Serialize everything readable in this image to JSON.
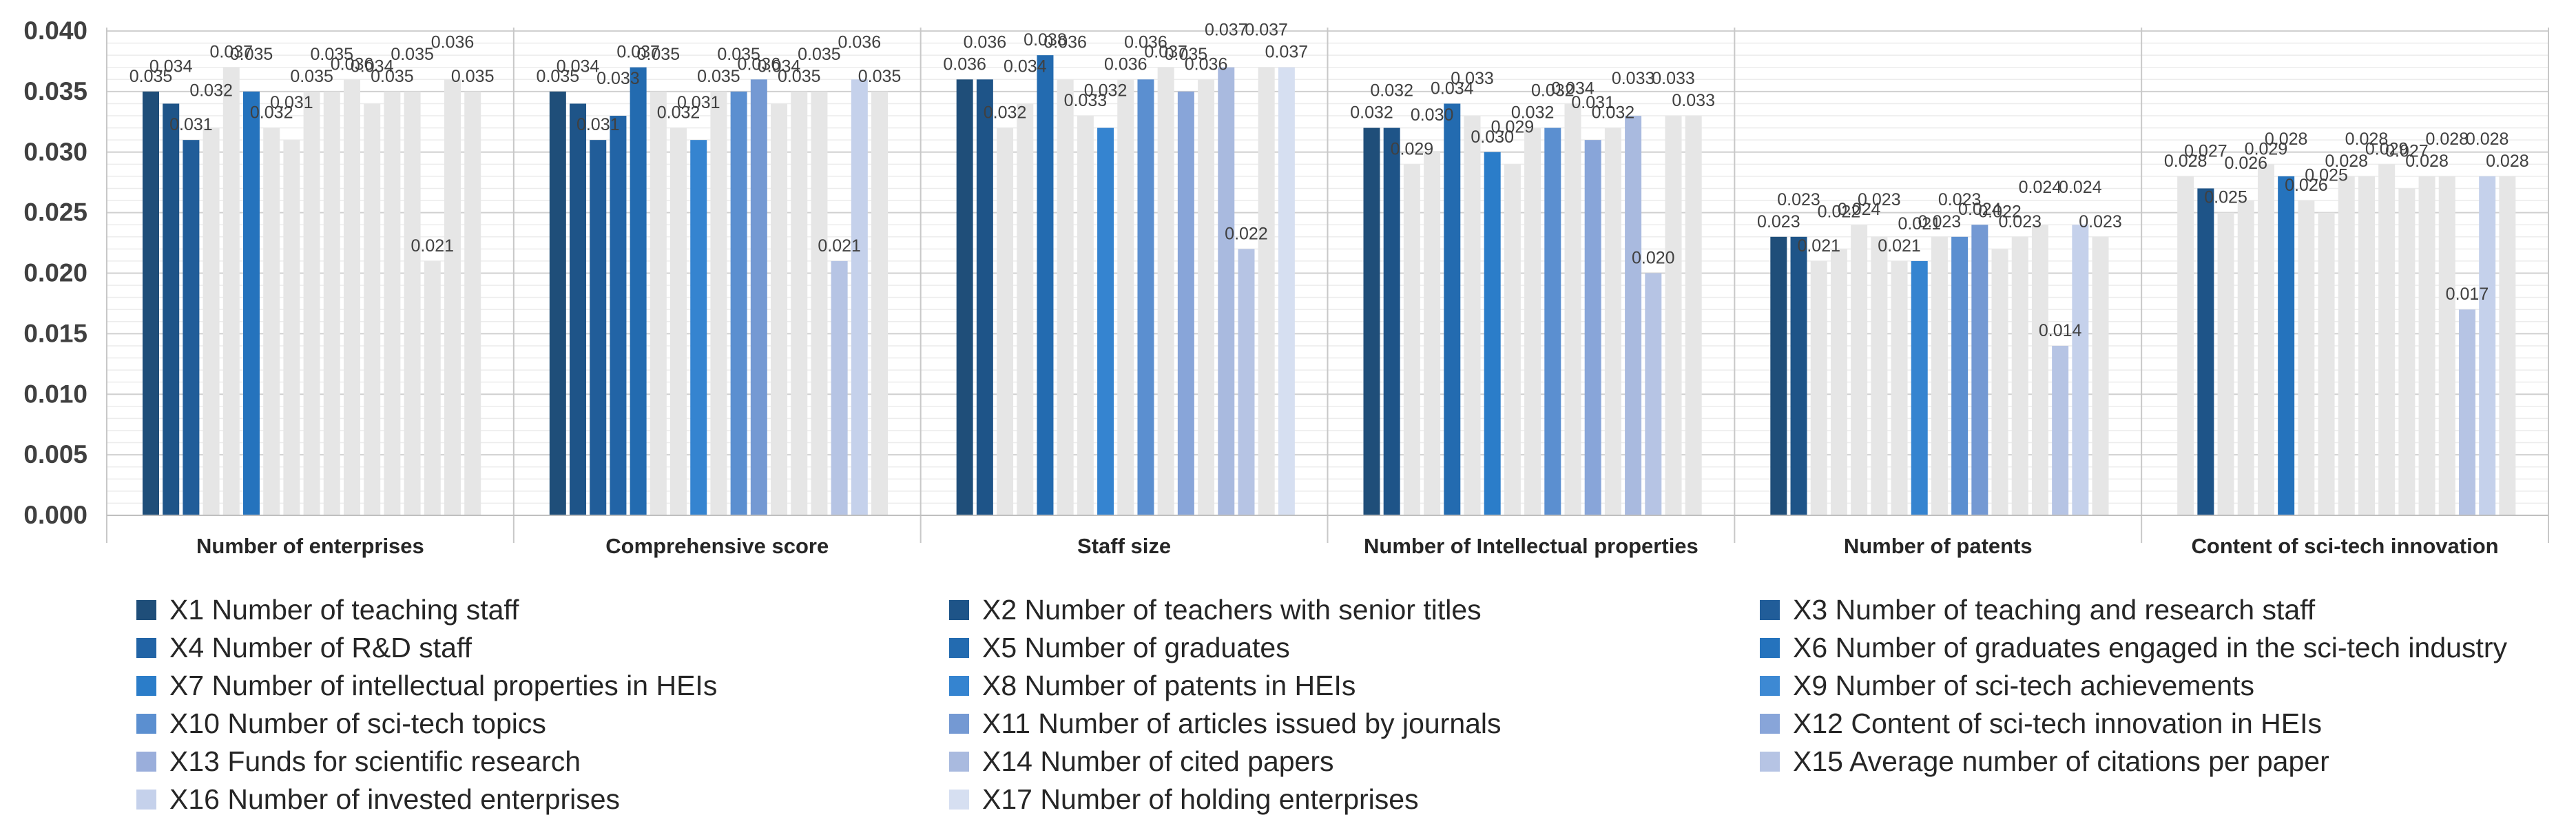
{
  "chart_data": {
    "type": "bar",
    "title": "",
    "xlabel": "",
    "ylabel": "",
    "ylim": [
      0,
      0.04
    ],
    "yticks": [
      "0.000",
      "0.005",
      "0.010",
      "0.015",
      "0.020",
      "0.025",
      "0.030",
      "0.035",
      "0.040"
    ],
    "grid": true,
    "legend_position": "bottom",
    "categories": [
      "Number of enterprises",
      "Comprehensive score",
      "Staff size",
      "Number of Intellectual properties",
      "Number of patents",
      "Content of sci-tech innovation"
    ],
    "series": [
      {
        "name": "X1 Number of teaching staff",
        "color": "#1f4e79",
        "values": [
          0.035,
          0.035,
          0.036,
          0.032,
          0.023,
          0.028
        ]
      },
      {
        "name": "X2 Number of teachers with senior titles",
        "color": "#1e5488",
        "values": [
          0.034,
          0.034,
          0.036,
          0.032,
          0.023,
          0.027
        ]
      },
      {
        "name": "X3 Number of teaching and research staff",
        "color": "#215d99",
        "values": [
          0.031,
          0.031,
          0.032,
          0.029,
          0.021,
          0.025
        ]
      },
      {
        "name": "X4 Number of R&D staff",
        "color": "#2264a6",
        "values": [
          0.032,
          0.033,
          0.034,
          0.03,
          0.022,
          0.026
        ]
      },
      {
        "name": "X5 Number of graduates",
        "color": "#236bb0",
        "values": [
          0.037,
          0.037,
          0.038,
          0.034,
          0.024,
          0.029
        ]
      },
      {
        "name": "X6 Number of graduates engaged in the sci-tech industry",
        "color": "#2573bd",
        "values": [
          0.035,
          0.035,
          0.036,
          0.033,
          0.023,
          0.028
        ]
      },
      {
        "name": "X7 Number of intellectual properties in HEIs",
        "color": "#2b7dc9",
        "values": [
          0.032,
          0.032,
          0.033,
          0.03,
          0.021,
          0.026
        ]
      },
      {
        "name": "X8 Number of patents in HEIs",
        "color": "#3584d0",
        "values": [
          0.031,
          0.031,
          0.032,
          0.029,
          0.021,
          0.025
        ]
      },
      {
        "name": "X9 Number of sci-tech achievements",
        "color": "#3d89d3",
        "values": [
          0.035,
          0.035,
          0.036,
          0.032,
          0.023,
          0.028
        ]
      },
      {
        "name": "X10 Number of sci-tech topics",
        "color": "#5b8fd0",
        "values": [
          0.035,
          0.035,
          0.036,
          0.032,
          0.023,
          0.028
        ]
      },
      {
        "name": "X11 Number of articles issued by journals",
        "color": "#7499d3",
        "values": [
          0.036,
          0.036,
          0.037,
          0.034,
          0.024,
          0.029
        ]
      },
      {
        "name": "X12 Content of sci-tech innovation in HEIs",
        "color": "#88a5d9",
        "values": [
          0.034,
          0.034,
          0.035,
          0.031,
          0.022,
          0.027
        ]
      },
      {
        "name": "X13 Funds for scientific research",
        "color": "#9aaedb",
        "values": [
          0.035,
          0.035,
          0.036,
          0.032,
          0.023,
          0.028
        ]
      },
      {
        "name": "X14 Number of cited papers",
        "color": "#a9badf",
        "values": [
          0.035,
          0.035,
          0.037,
          0.033,
          0.024,
          0.028
        ]
      },
      {
        "name": "X15 Average number of citations per paper",
        "color": "#b6c4e4",
        "values": [
          0.021,
          0.021,
          0.022,
          0.02,
          0.014,
          0.017
        ]
      },
      {
        "name": "X16 Number of invested enterprises",
        "color": "#c5d1eb",
        "values": [
          0.036,
          0.036,
          0.037,
          0.033,
          0.024,
          0.028
        ]
      },
      {
        "name": "X17 Number of holding enterprises",
        "color": "#d6dff1",
        "values": [
          0.035,
          0.035,
          0.037,
          0.033,
          0.023,
          0.028
        ]
      }
    ],
    "highlighted": [
      [
        0,
        1,
        2,
        5
      ],
      [
        0,
        1,
        2,
        3,
        4,
        7,
        9,
        10,
        14,
        15
      ],
      [
        0,
        1,
        4,
        7,
        9,
        11,
        13,
        14,
        16
      ],
      [
        0,
        1,
        4,
        6,
        9,
        11,
        13,
        14
      ],
      [
        0,
        1,
        7,
        9,
        10,
        14,
        15
      ],
      [
        1,
        5,
        14,
        15
      ]
    ],
    "dimmed_color": "#e6e6e6"
  }
}
